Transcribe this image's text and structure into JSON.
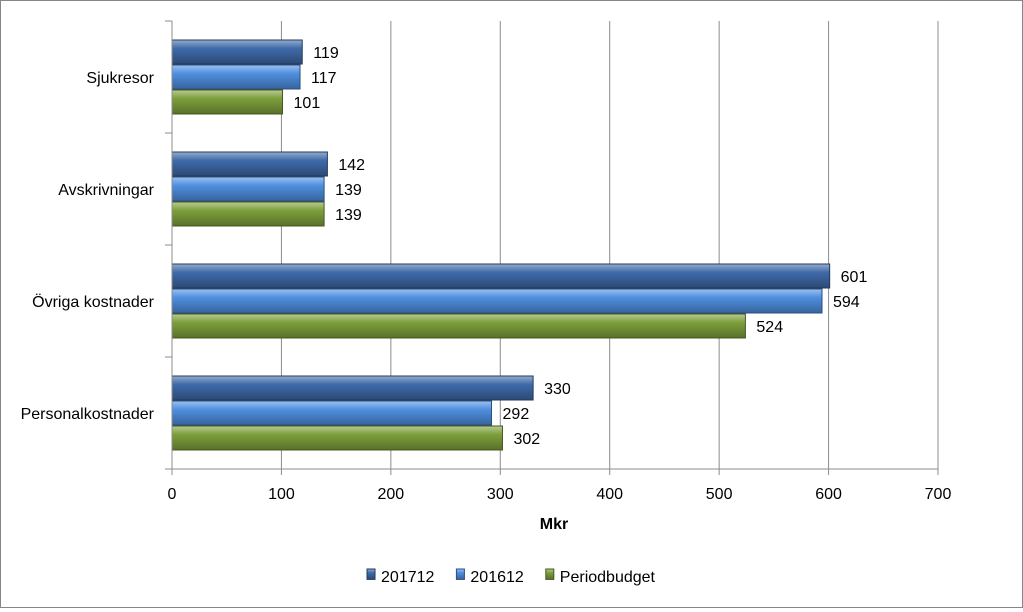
{
  "chart_data": {
    "type": "bar",
    "orientation": "horizontal",
    "categories": [
      "Sjukresor",
      "Avskrivningar",
      "Övriga kostnader",
      "Personalkostnader"
    ],
    "series": [
      {
        "name": "201712",
        "color": "#3f6aa8",
        "values": [
          119,
          142,
          601,
          330
        ]
      },
      {
        "name": "201612",
        "color": "#4f8fe0",
        "values": [
          117,
          139,
          594,
          292
        ]
      },
      {
        "name": "Periodbudget",
        "color": "#7da03c",
        "values": [
          101,
          139,
          524,
          302
        ]
      }
    ],
    "xlabel": "Mkr",
    "ylabel": "",
    "xlim": [
      0,
      700
    ],
    "xticks": [
      "0",
      "100",
      "200",
      "300",
      "400",
      "500",
      "600",
      "700"
    ],
    "grid": true,
    "legend_position": "bottom",
    "data_labels": true
  }
}
